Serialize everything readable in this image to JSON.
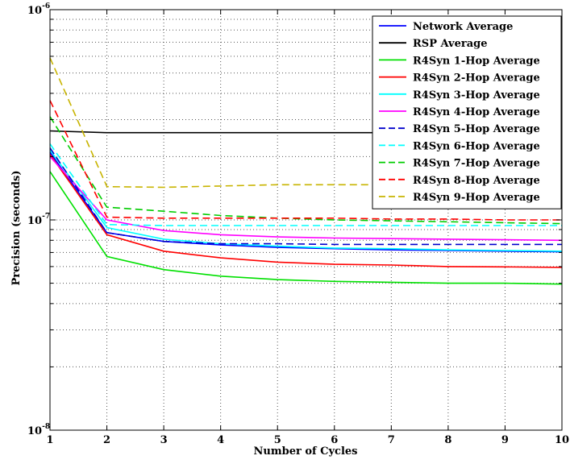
{
  "chart_data": {
    "type": "line",
    "title": "",
    "xlabel": "Number of Cycles",
    "ylabel": "Precision (seconds)",
    "xlim": [
      1,
      10
    ],
    "ylim": [
      1e-08,
      1e-06
    ],
    "yscale": "log",
    "grid": true,
    "legend_position": "top-right",
    "x": [
      1,
      2,
      3,
      4,
      5,
      6,
      7,
      8,
      9,
      10
    ],
    "x_ticks": [
      "1",
      "2",
      "3",
      "4",
      "5",
      "6",
      "7",
      "8",
      "9",
      "10"
    ],
    "y_ticks": [
      {
        "value": 1e-08,
        "base": "10",
        "exp": "-8"
      },
      {
        "value": 1e-07,
        "base": "10",
        "exp": "-7"
      },
      {
        "value": 1e-06,
        "base": "10",
        "exp": "-6"
      }
    ],
    "series": [
      {
        "name": "Network Average",
        "color": "#0000ff",
        "dash": "solid",
        "values": [
          2.1e-07,
          8.7e-08,
          7.9e-08,
          7.6e-08,
          7.4e-08,
          7.3e-08,
          7.2e-08,
          7.15e-08,
          7.1e-08,
          7.05e-08
        ]
      },
      {
        "name": "RSP Average",
        "color": "#000000",
        "dash": "solid",
        "values": [
          2.65e-07,
          2.6e-07,
          2.6e-07,
          2.6e-07,
          2.6e-07,
          2.6e-07,
          2.6e-07,
          2.6e-07,
          2.6e-07,
          2.6e-07
        ]
      },
      {
        "name": "R4Syn 1-Hop Average",
        "color": "#00e000",
        "dash": "solid",
        "values": [
          1.7e-07,
          6.7e-08,
          5.8e-08,
          5.4e-08,
          5.2e-08,
          5.1e-08,
          5.05e-08,
          5e-08,
          5e-08,
          4.95e-08
        ]
      },
      {
        "name": "R4Syn 2-Hop Average",
        "color": "#ff0000",
        "dash": "solid",
        "values": [
          2.05e-07,
          8.5e-08,
          7.1e-08,
          6.6e-08,
          6.3e-08,
          6.15e-08,
          6.1e-08,
          6e-08,
          5.98e-08,
          5.95e-08
        ]
      },
      {
        "name": "R4Syn 3-Hop Average",
        "color": "#00ffff",
        "dash": "solid",
        "values": [
          2.15e-07,
          9.2e-08,
          8.1e-08,
          7.7e-08,
          7.5e-08,
          7.35e-08,
          7.3e-08,
          7.2e-08,
          7.15e-08,
          7.1e-08
        ]
      },
      {
        "name": "R4Syn 4-Hop Average",
        "color": "#ff00ff",
        "dash": "solid",
        "values": [
          2e-07,
          1e-07,
          8.9e-08,
          8.5e-08,
          8.3e-08,
          8.2e-08,
          8.15e-08,
          8.1e-08,
          8.05e-08,
          8e-08
        ]
      },
      {
        "name": "R4Syn 5-Hop Average",
        "color": "#0000cc",
        "dash": "dashed",
        "values": [
          2.2e-07,
          8.7e-08,
          7.9e-08,
          7.7e-08,
          7.7e-08,
          7.65e-08,
          7.65e-08,
          7.65e-08,
          7.65e-08,
          7.65e-08
        ]
      },
      {
        "name": "R4Syn 6-Hop Average",
        "color": "#00ffff",
        "dash": "dashed",
        "values": [
          2.3e-07,
          9.5e-08,
          9.4e-08,
          9.4e-08,
          9.4e-08,
          9.4e-08,
          9.4e-08,
          9.4e-08,
          9.4e-08,
          9.4e-08
        ]
      },
      {
        "name": "R4Syn 7-Hop Average",
        "color": "#00cc00",
        "dash": "dashed",
        "values": [
          3.1e-07,
          1.15e-07,
          1.1e-07,
          1.05e-07,
          1.02e-07,
          1e-07,
          9.9e-08,
          9.8e-08,
          9.7e-08,
          9.6e-08
        ]
      },
      {
        "name": "R4Syn 8-Hop Average",
        "color": "#ff0000",
        "dash": "dashed",
        "values": [
          3.7e-07,
          1.03e-07,
          1.02e-07,
          1.02e-07,
          1.02e-07,
          1.02e-07,
          1.01e-07,
          1.01e-07,
          1e-07,
          1e-07
        ]
      },
      {
        "name": "R4Syn 9-Hop Average",
        "color": "#c8b400",
        "dash": "dashed",
        "values": [
          5.9e-07,
          1.44e-07,
          1.43e-07,
          1.45e-07,
          1.47e-07,
          1.47e-07,
          1.47e-07,
          1.47e-07,
          1.47e-07,
          1.47e-07
        ]
      }
    ]
  }
}
